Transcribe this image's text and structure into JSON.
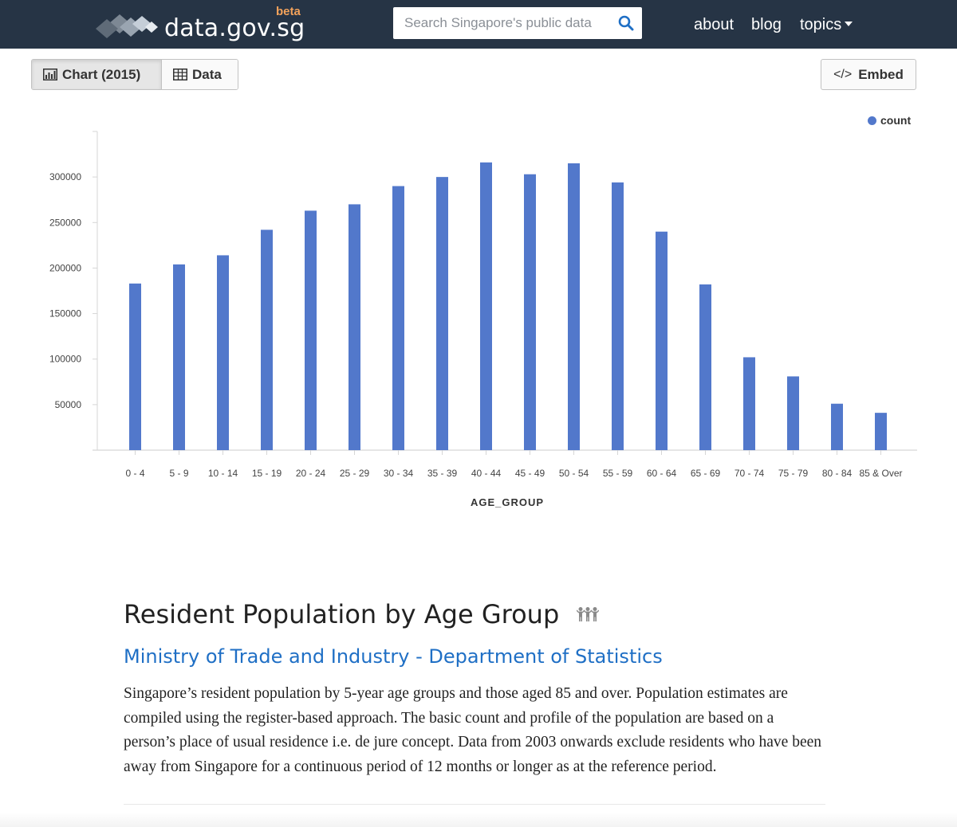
{
  "header": {
    "logo_text": "data.gov.sg",
    "logo_badge": "beta",
    "search_placeholder": "Search Singapore's public data",
    "nav": {
      "about": "about",
      "blog": "blog",
      "topics": "topics"
    },
    "background_color": "#263445"
  },
  "toolbar": {
    "chart_tab": "Chart (2015)",
    "data_tab": "Data",
    "embed": "Embed"
  },
  "chart_data": {
    "type": "bar",
    "categories": [
      "0 - 4",
      "5 - 9",
      "10 - 14",
      "15 - 19",
      "20 - 24",
      "25 - 29",
      "30 - 34",
      "35 - 39",
      "40 - 44",
      "45 - 49",
      "50 - 54",
      "55 - 59",
      "60 - 64",
      "65 - 69",
      "70 - 74",
      "75 - 79",
      "80 - 84",
      "85 & Over"
    ],
    "series": [
      {
        "name": "count",
        "color": "#5278cb",
        "values": [
          183000,
          204000,
          214000,
          242000,
          263000,
          270000,
          290000,
          300000,
          316000,
          303000,
          315000,
          294000,
          240000,
          182000,
          102000,
          81000,
          51000,
          41000
        ]
      }
    ],
    "ylim": [
      0,
      350000
    ],
    "yticks": [
      50000,
      100000,
      150000,
      200000,
      250000,
      300000
    ],
    "ytick_labels": [
      "50000",
      "100000",
      "150000",
      "200000",
      "250000",
      "300000"
    ],
    "xlabel": "AGE_GROUP",
    "ylabel": "",
    "legend_label": "count",
    "legend_position": "top-right",
    "grid": false
  },
  "dataset": {
    "title": "Resident Population by Age Group",
    "category_icon": "people-icon",
    "organisation": "Ministry of Trade and Industry - Department of Statistics",
    "description": "Singapore’s resident population by 5-year age groups and those aged 85 and over. Population estimates are compiled using the register-based approach. The basic count and profile of the population are based on a person’s place of usual residence i.e. de jure concept. Data from 2003 onwards exclude residents who have been away from Singapore for a continuous period of 12 months or longer as at the reference period."
  }
}
